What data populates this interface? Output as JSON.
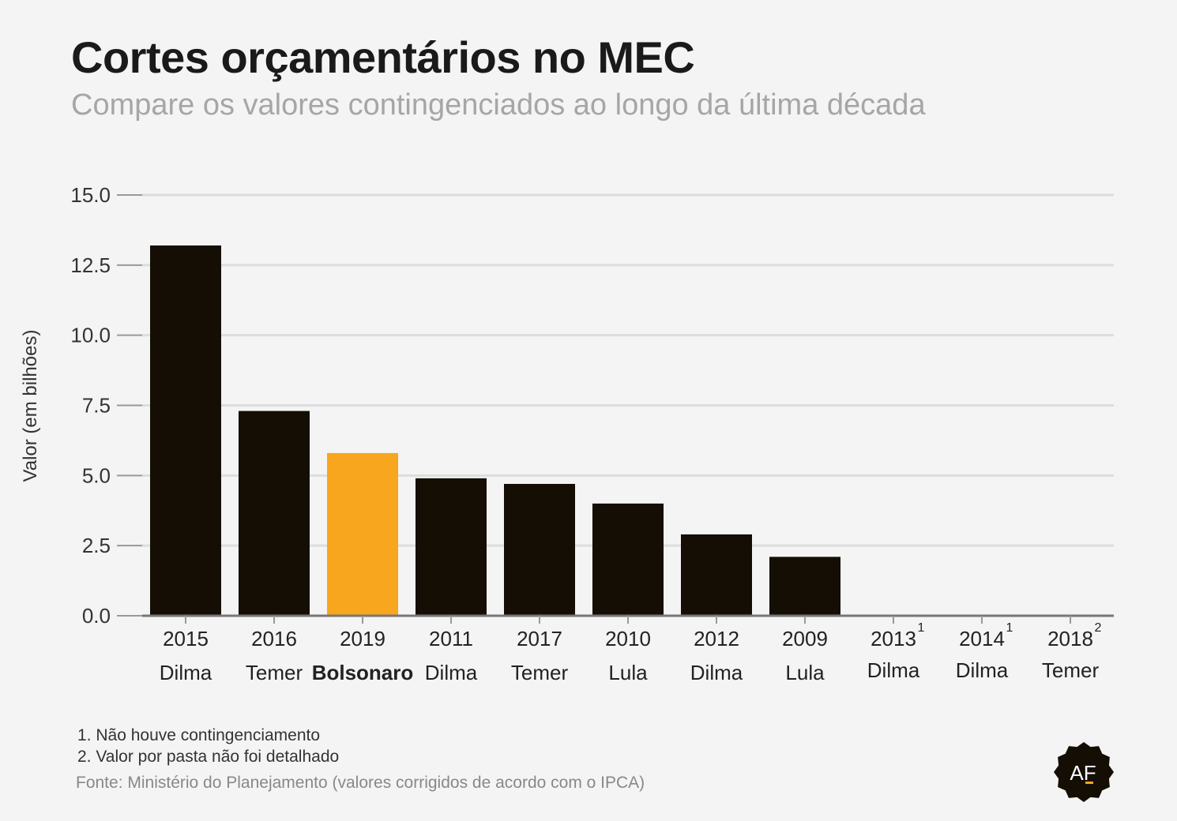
{
  "title": "Cortes orçamentários no MEC",
  "subtitle": "Compare os valores contingenciados ao longo da última década",
  "footnotes": [
    "1. Não houve contingenciamento",
    "2. Valor por pasta não foi detalhado"
  ],
  "source": "Fonte: Ministério do Planejamento (valores corrigidos de acordo com o IPCA)",
  "logo": {
    "text": "AF",
    "icon": "af-seal-logo"
  },
  "colors": {
    "default_bar": "#140e05",
    "highlight_bar": "#f8a61e",
    "grid": "#dddddd",
    "axis": "#777777"
  },
  "chart_data": {
    "type": "bar",
    "ylabel": "Valor (em bilhões)",
    "ylim": [
      0,
      15
    ],
    "yticks": [
      "0.0",
      "2.5",
      "5.0",
      "7.5",
      "10.0",
      "12.5",
      "15.0"
    ],
    "grid": true,
    "highlight": "2019",
    "categories": [
      {
        "year": "2015",
        "name": "Dilma",
        "value": 13.2,
        "note": ""
      },
      {
        "year": "2016",
        "name": "Temer",
        "value": 7.3,
        "note": ""
      },
      {
        "year": "2019",
        "name": "Bolsonaro",
        "value": 5.8,
        "note": ""
      },
      {
        "year": "2011",
        "name": "Dilma",
        "value": 4.9,
        "note": ""
      },
      {
        "year": "2017",
        "name": "Temer",
        "value": 4.7,
        "note": ""
      },
      {
        "year": "2010",
        "name": "Lula",
        "value": 4.0,
        "note": ""
      },
      {
        "year": "2012",
        "name": "Dilma",
        "value": 2.9,
        "note": ""
      },
      {
        "year": "2009",
        "name": "Lula",
        "value": 2.1,
        "note": ""
      },
      {
        "year": "2013",
        "name": "Dilma",
        "value": 0,
        "note": "1"
      },
      {
        "year": "2014",
        "name": "Dilma",
        "value": 0,
        "note": "1"
      },
      {
        "year": "2018",
        "name": "Temer",
        "value": 0,
        "note": "2"
      }
    ]
  }
}
